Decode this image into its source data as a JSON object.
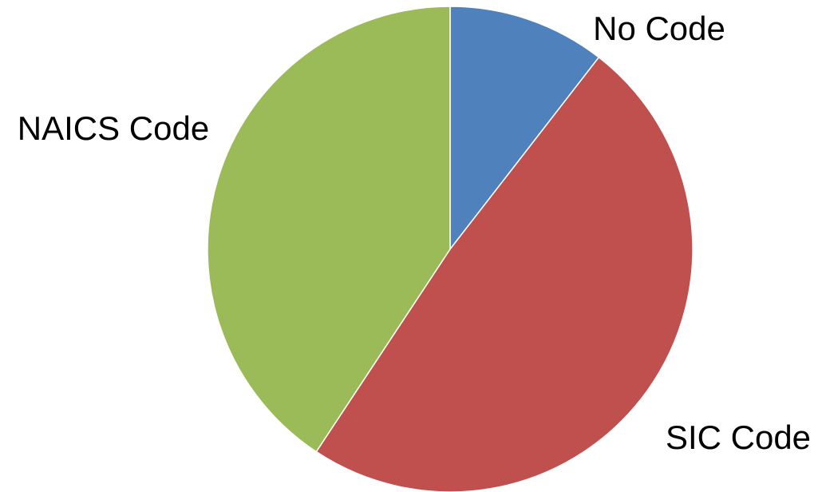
{
  "chart_data": {
    "type": "pie",
    "categories": [
      "No Code",
      "SIC Code",
      "NAICS Code"
    ],
    "values": [
      10.5,
      48.8,
      40.7
    ],
    "unit": "percent",
    "colors": [
      "#4f81bd",
      "#c0504d",
      "#9bbb59"
    ],
    "start_angle_deg": 0,
    "direction": "clockwise",
    "title": "",
    "legend": "none"
  }
}
